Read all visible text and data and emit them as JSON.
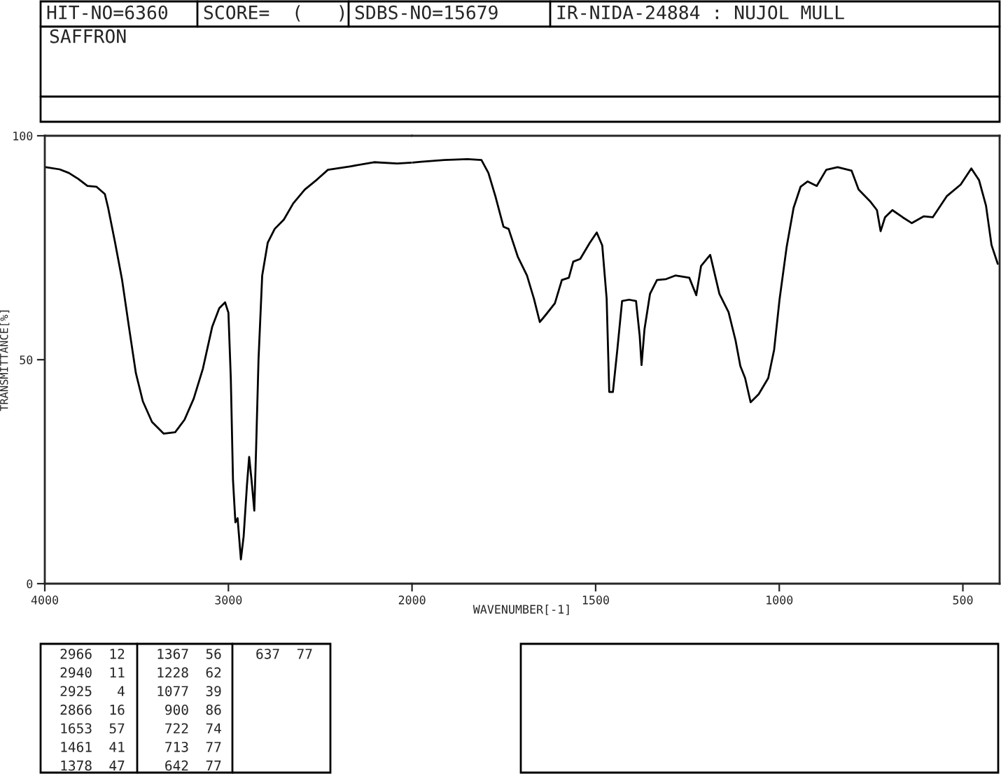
{
  "chart_data": [
    {
      "type": "line",
      "title": "SAFFRON",
      "ylabel": "TRANSMITTANCE[%]",
      "xlim": [
        4000,
        2000
      ],
      "xticks": [
        4000,
        3000,
        2000
      ],
      "ylim": [
        0,
        100
      ],
      "yticks": [
        0,
        50,
        100
      ],
      "grid": false,
      "legend": false,
      "annotations": [
        "HIT-NO=6360",
        "SCORE=  (   )",
        "SDBS-NO=15679",
        "IR-NIDA-24884 : NUJOL MULL",
        "2966  12",
        "2940  11",
        "2925   4",
        "2866  16",
        "1653  57",
        "1461  41",
        "1378  47",
        "1367  56",
        "1228  62",
        "1077  39",
        " 900  86",
        " 722  74",
        " 713  77",
        " 642  77",
        "637  77"
      ],
      "series": [
        {
          "color": "#000000",
          "x": [
            3995,
            3919,
            3869,
            3819,
            3768,
            3718,
            3673,
            3655,
            3617,
            3579,
            3542,
            3504,
            3466,
            3416,
            3353,
            3290,
            3239,
            3189,
            3139,
            3088,
            3050,
            3018,
            3000,
            2987,
            2975,
            2962,
            2950,
            2932,
            2917,
            2899,
            2887,
            2874,
            2859,
            2849,
            2836,
            2816,
            2786,
            2748,
            2698,
            2647,
            2584,
            2521,
            2458,
            2332,
            2207,
            2081,
            2000
          ],
          "values": [
            93.0,
            92.5,
            91.7,
            90.4,
            88.8,
            88.6,
            87.0,
            83.9,
            76.1,
            67.8,
            57.4,
            47.0,
            40.7,
            36.1,
            33.5,
            33.8,
            36.6,
            41.3,
            48.0,
            57.4,
            61.5,
            62.8,
            60.5,
            45.9,
            23.1,
            13.7,
            14.6,
            5.4,
            10.6,
            22.0,
            28.3,
            23.1,
            16.3,
            30.4,
            50.1,
            68.8,
            76.1,
            79.2,
            81.3,
            84.9,
            88.0,
            90.1,
            92.4,
            93.2,
            94.1,
            93.8,
            94.0
          ]
        }
      ]
    },
    {
      "type": "line",
      "xlabel": "WAVENUMBER[-1]",
      "xlim": [
        2000,
        400
      ],
      "xticks": [
        1500,
        1000,
        500
      ],
      "ylim": [
        0,
        100
      ],
      "tick_labels": "x",
      "grid": false,
      "legend": false,
      "series": [
        {
          "color": "#000000",
          "x": [
            2000,
            1975,
            1912,
            1849,
            1811,
            1792,
            1773,
            1751,
            1737,
            1712,
            1687,
            1668,
            1652,
            1636,
            1611,
            1592,
            1573,
            1561,
            1542,
            1516,
            1497,
            1482,
            1470,
            1463,
            1453,
            1441,
            1428,
            1409,
            1390,
            1380,
            1375,
            1367,
            1352,
            1333,
            1308,
            1283,
            1245,
            1226,
            1213,
            1188,
            1163,
            1138,
            1119,
            1106,
            1093,
            1078,
            1056,
            1030,
            1014,
            999,
            980,
            961,
            942,
            923,
            898,
            872,
            841,
            803,
            784,
            753,
            734,
            724,
            712,
            692,
            664,
            639,
            607,
            582,
            544,
            506,
            477,
            456,
            437,
            422,
            405
          ],
          "values": [
            94.0,
            94.2,
            94.6,
            94.8,
            94.6,
            91.7,
            86.5,
            79.7,
            79.2,
            73.0,
            68.8,
            63.6,
            58.4,
            60.0,
            62.6,
            67.8,
            68.3,
            71.9,
            72.5,
            76.1,
            78.4,
            75.5,
            63.6,
            42.8,
            42.8,
            52.2,
            63.1,
            63.4,
            63.1,
            55.3,
            48.8,
            56.8,
            64.7,
            67.8,
            68.0,
            68.8,
            68.3,
            64.4,
            70.9,
            73.4,
            64.7,
            60.6,
            54.3,
            48.6,
            45.9,
            40.5,
            42.3,
            45.9,
            52.2,
            63.6,
            75.1,
            83.9,
            88.6,
            89.8,
            88.8,
            92.4,
            93.0,
            92.2,
            88.0,
            85.4,
            83.4,
            78.7,
            81.8,
            83.4,
            81.8,
            80.5,
            82.0,
            81.8,
            86.5,
            89.1,
            92.7,
            90.1,
            84.4,
            75.6,
            71.4
          ]
        }
      ]
    }
  ]
}
